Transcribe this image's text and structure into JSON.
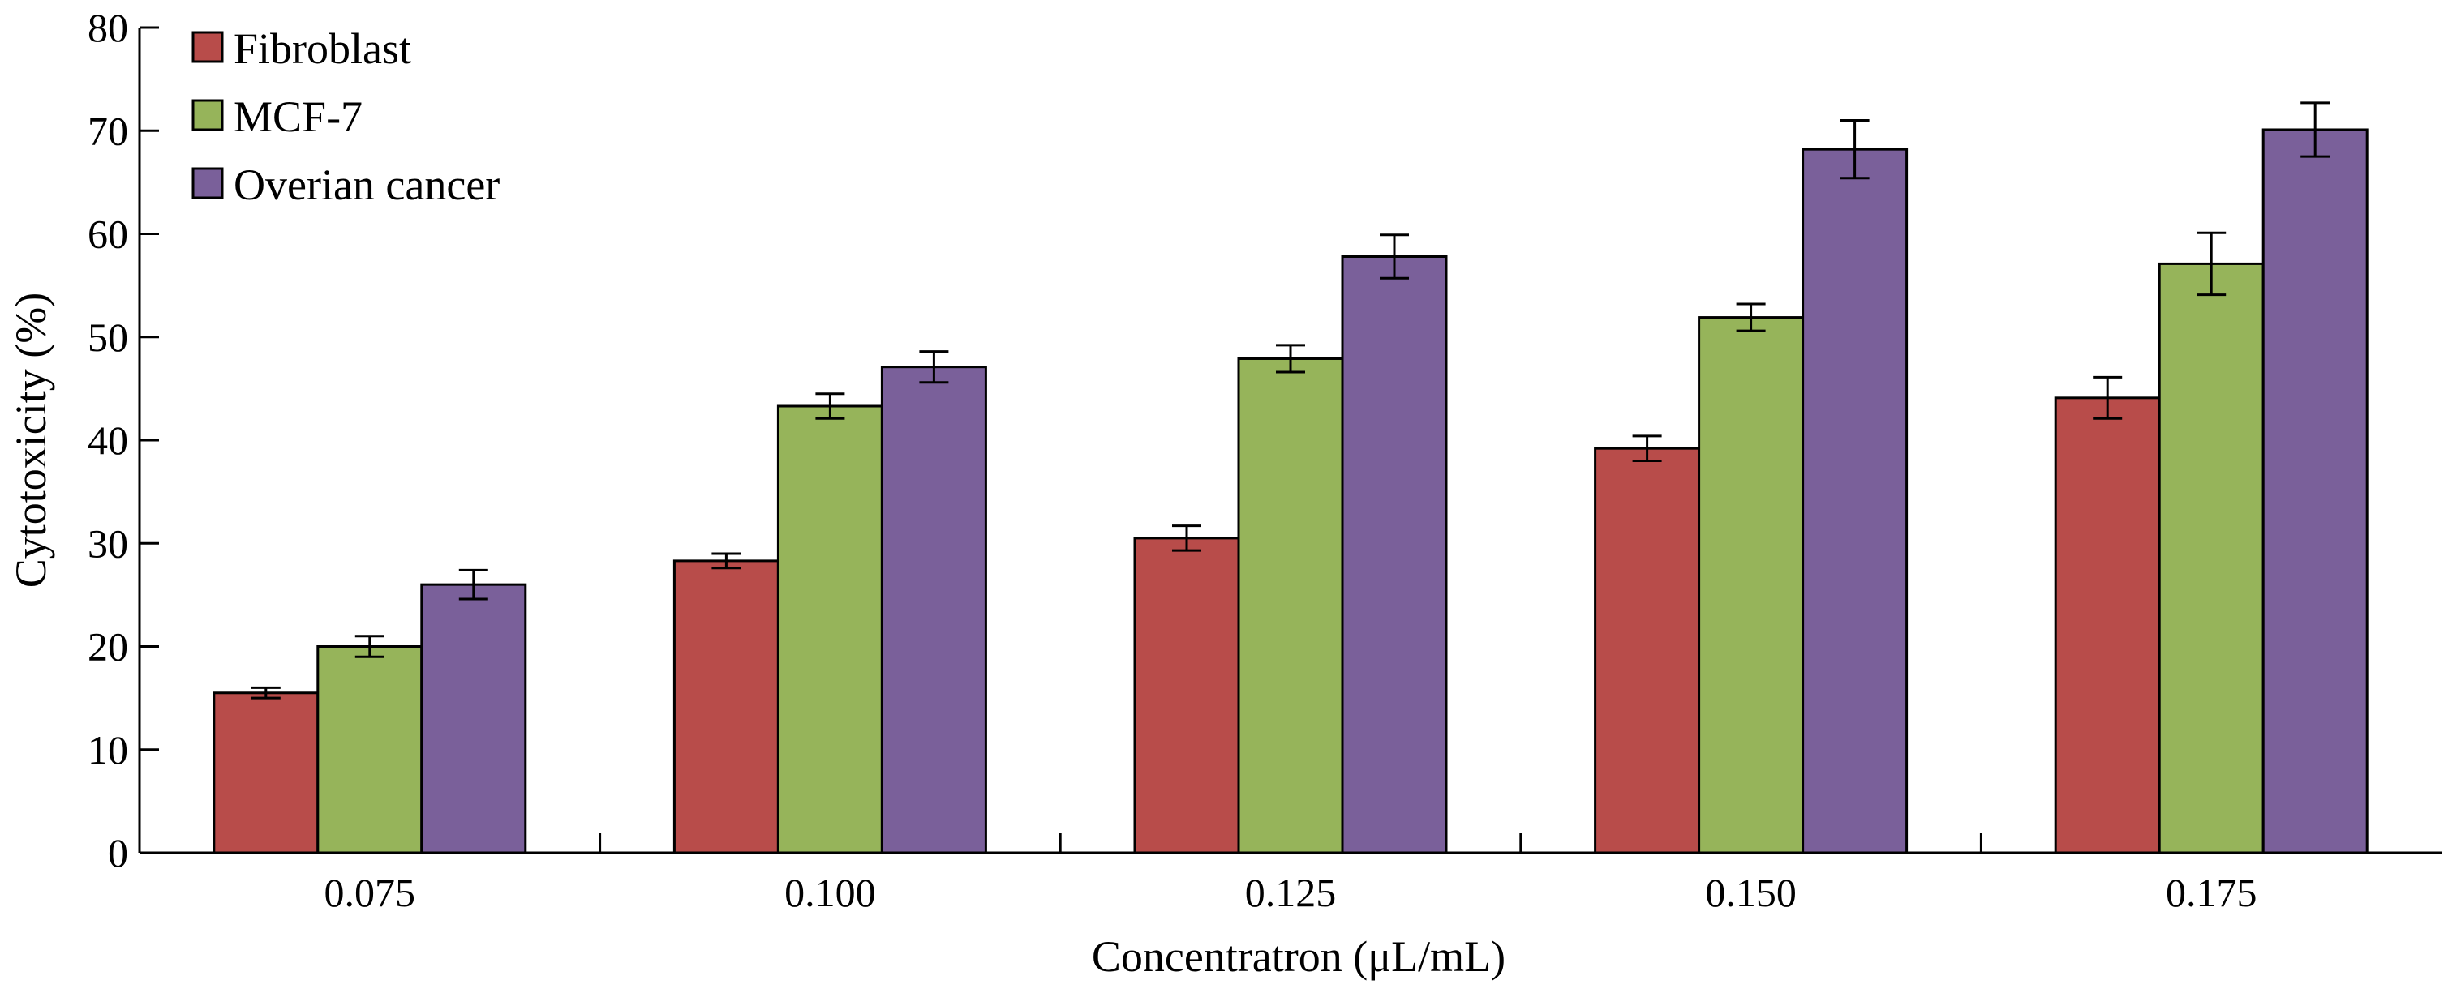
{
  "chart_data": {
    "type": "bar",
    "title": "",
    "xlabel": "Concentratron (μL/mL)",
    "ylabel": "Cytotoxicity (%)",
    "ylim": [
      0,
      80
    ],
    "yticks": [
      0,
      10,
      20,
      30,
      40,
      50,
      60,
      70,
      80
    ],
    "categories": [
      "0.075",
      "0.100",
      "0.125",
      "0.150",
      "0.175"
    ],
    "grid": false,
    "legend_position": "top-left",
    "series": [
      {
        "name": "Fibroblast",
        "color": "#b84c4a",
        "values": [
          15.5,
          28.3,
          30.5,
          39.2,
          44.1
        ],
        "errors": [
          0.5,
          0.7,
          1.2,
          1.2,
          2.0
        ]
      },
      {
        "name": "MCF-7",
        "color": "#96b45a",
        "values": [
          20.0,
          43.3,
          47.9,
          51.9,
          57.1
        ],
        "errors": [
          1.0,
          1.2,
          1.3,
          1.3,
          3.0
        ]
      },
      {
        "name": "Overian cancer",
        "color": "#7a609a",
        "values": [
          26.0,
          47.1,
          57.8,
          68.2,
          70.1
        ],
        "errors": [
          1.4,
          1.5,
          2.1,
          2.8,
          2.6
        ]
      }
    ]
  }
}
